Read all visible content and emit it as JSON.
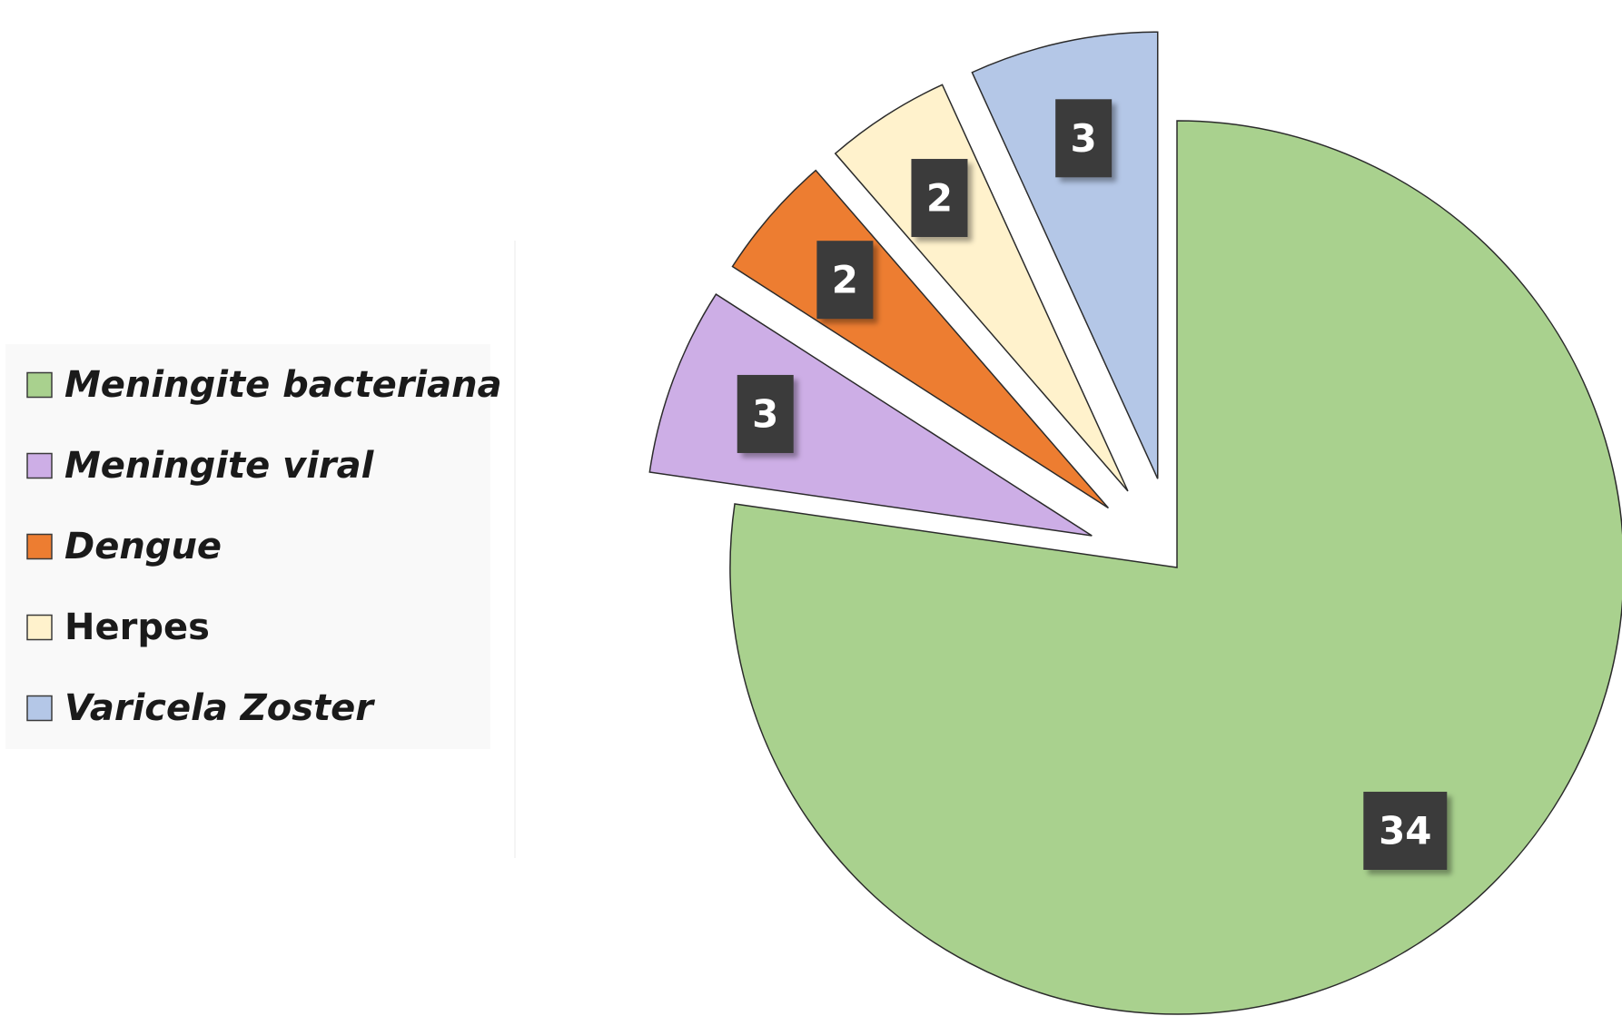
{
  "chart_data": {
    "type": "pie",
    "title": "",
    "legend_position": "left",
    "slices": [
      {
        "label": "Meningite bacteriana",
        "value": 34,
        "color": "#a9d18e",
        "italic": true,
        "exploded": false
      },
      {
        "label": "Meningite viral",
        "value": 3,
        "color": "#cdaee6",
        "italic": true,
        "exploded": true
      },
      {
        "label": "Dengue",
        "value": 2,
        "color": "#ed7d31",
        "italic": true,
        "exploded": true
      },
      {
        "label": "Herpes",
        "value": 2,
        "color": "#fff2cc",
        "italic": false,
        "exploded": true
      },
      {
        "label": "Varicela Zoster",
        "value": 3,
        "color": "#b4c7e7",
        "italic": true,
        "exploded": true
      }
    ],
    "data_label_style": {
      "background": "#3a3a3a",
      "text_color": "#ffffff"
    }
  }
}
